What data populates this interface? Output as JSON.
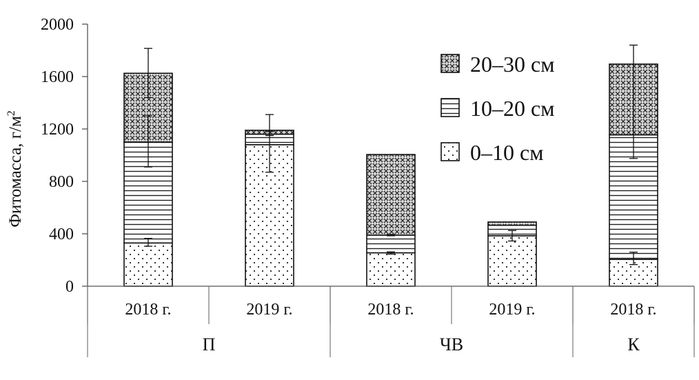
{
  "chart_data": {
    "type": "bar",
    "stacked": true,
    "title": "",
    "ylabel": "Фитомасса, г/м",
    "ylabel_sup": "2",
    "xlabel": "",
    "ylim": [
      0,
      2000
    ],
    "yticks": [
      0,
      400,
      800,
      1200,
      1600,
      2000
    ],
    "grid": false,
    "legend_position": "top-right",
    "categories": [
      "2018 г.",
      "2019 г.",
      "2018 г.",
      "2019 г.",
      "2018 г."
    ],
    "groups": [
      {
        "label": "П",
        "span": 2
      },
      {
        "label": "ЧВ",
        "span": 2
      },
      {
        "label": "К",
        "span": 1
      }
    ],
    "series": [
      {
        "name": "0–10 см",
        "pattern": "dots",
        "values": [
          330,
          1080,
          255,
          385,
          205
        ]
      },
      {
        "name": "10–20 см",
        "pattern": "hlines",
        "values": [
          770,
          80,
          135,
          80,
          950
        ]
      },
      {
        "name": "20–30 см",
        "pattern": "crosshatch",
        "values": [
          525,
          30,
          615,
          25,
          540
        ]
      }
    ],
    "error_bars": [
      {
        "category_index": 0,
        "series_index": 0,
        "top": 330,
        "low": 305,
        "high": 365
      },
      {
        "category_index": 0,
        "series_index": 1,
        "top": 1100,
        "low": 910,
        "high": 1300
      },
      {
        "category_index": 0,
        "series_index": 2,
        "top": 1625,
        "low": 1440,
        "high": 1815
      },
      {
        "category_index": 1,
        "series_index": 0,
        "top": 1080,
        "low": 870,
        "high": 1180
      },
      {
        "category_index": 1,
        "series_index": 2,
        "top": 1190,
        "low": 1150,
        "high": 1310
      },
      {
        "category_index": 2,
        "series_index": 0,
        "top": 255,
        "low": 245,
        "high": 262
      },
      {
        "category_index": 2,
        "series_index": 1,
        "top": 390,
        "low": 385,
        "high": 395
      },
      {
        "category_index": 3,
        "series_index": 0,
        "top": 385,
        "low": 345,
        "high": 425
      },
      {
        "category_index": 4,
        "series_index": 0,
        "top": 205,
        "low": 165,
        "high": 260
      },
      {
        "category_index": 4,
        "series_index": 2,
        "top": 1695,
        "low": 975,
        "high": 1840
      }
    ]
  }
}
